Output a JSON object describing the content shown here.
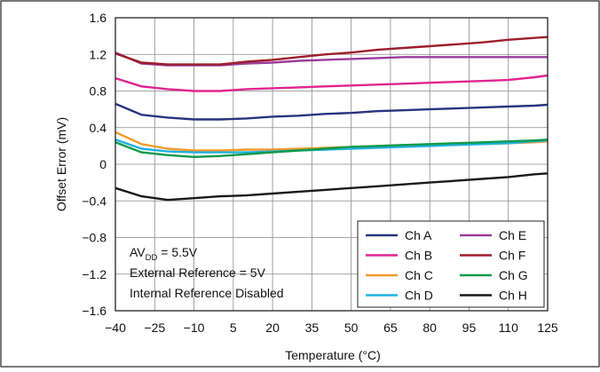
{
  "chart_data": {
    "type": "line",
    "xlabel": "Temperature (°C)",
    "ylabel": "Offset Error (mV)",
    "xlim": [
      -40,
      125
    ],
    "ylim": [
      -1.6,
      1.6
    ],
    "x_ticks": [
      "−40",
      "−25",
      "−10",
      "5",
      "20",
      "35",
      "50",
      "65",
      "80",
      "95",
      "110",
      "125"
    ],
    "y_ticks": [
      "1.6",
      "1.2",
      "0.8",
      "0.4",
      "0",
      "−0.4",
      "−0.8",
      "−1.2",
      "−1.6"
    ],
    "grid": true,
    "legend_position": "bottom-right",
    "annotations": {
      "line1_main": "AV",
      "line1_sub": "DD",
      "line1_rest": " = 5.5V",
      "line2": "External Reference = 5V",
      "line3": "Internal Reference Disabled"
    },
    "x": [
      -40,
      -30,
      -20,
      -10,
      0,
      10,
      20,
      30,
      40,
      50,
      60,
      70,
      80,
      90,
      100,
      110,
      120,
      125
    ],
    "series": [
      {
        "name": "Ch A",
        "color": "#27357f",
        "values": [
          0.66,
          0.54,
          0.51,
          0.49,
          0.49,
          0.5,
          0.52,
          0.53,
          0.55,
          0.56,
          0.58,
          0.59,
          0.6,
          0.61,
          0.62,
          0.63,
          0.64,
          0.65
        ]
      },
      {
        "name": "Ch B",
        "color": "#e0258f",
        "values": [
          0.94,
          0.85,
          0.82,
          0.8,
          0.8,
          0.82,
          0.83,
          0.84,
          0.85,
          0.86,
          0.87,
          0.88,
          0.89,
          0.9,
          0.91,
          0.92,
          0.95,
          0.97
        ]
      },
      {
        "name": "Ch C",
        "color": "#f39a2b",
        "values": [
          0.35,
          0.22,
          0.17,
          0.15,
          0.15,
          0.16,
          0.16,
          0.17,
          0.18,
          0.19,
          0.2,
          0.21,
          0.21,
          0.22,
          0.22,
          0.23,
          0.24,
          0.25
        ]
      },
      {
        "name": "Ch D",
        "color": "#1fb0e0",
        "values": [
          0.27,
          0.17,
          0.14,
          0.13,
          0.13,
          0.13,
          0.14,
          0.15,
          0.16,
          0.17,
          0.18,
          0.19,
          0.2,
          0.21,
          0.22,
          0.23,
          0.25,
          0.26
        ]
      },
      {
        "name": "Ch E",
        "color": "#9b3c9a",
        "values": [
          1.22,
          1.1,
          1.08,
          1.08,
          1.08,
          1.1,
          1.11,
          1.13,
          1.14,
          1.15,
          1.16,
          1.17,
          1.17,
          1.17,
          1.17,
          1.17,
          1.17,
          1.17
        ]
      },
      {
        "name": "Ch F",
        "color": "#9c1f2a",
        "values": [
          1.21,
          1.11,
          1.09,
          1.09,
          1.09,
          1.12,
          1.14,
          1.17,
          1.2,
          1.22,
          1.25,
          1.27,
          1.29,
          1.31,
          1.33,
          1.36,
          1.38,
          1.39
        ]
      },
      {
        "name": "Ch G",
        "color": "#0f9a4a",
        "values": [
          0.24,
          0.13,
          0.1,
          0.08,
          0.09,
          0.11,
          0.13,
          0.15,
          0.17,
          0.19,
          0.2,
          0.21,
          0.22,
          0.23,
          0.24,
          0.25,
          0.26,
          0.27
        ]
      },
      {
        "name": "Ch H",
        "color": "#1a1a1a",
        "values": [
          -0.26,
          -0.35,
          -0.39,
          -0.37,
          -0.35,
          -0.34,
          -0.32,
          -0.3,
          -0.28,
          -0.26,
          -0.24,
          -0.22,
          -0.2,
          -0.18,
          -0.16,
          -0.14,
          -0.11,
          -0.1
        ]
      }
    ]
  }
}
